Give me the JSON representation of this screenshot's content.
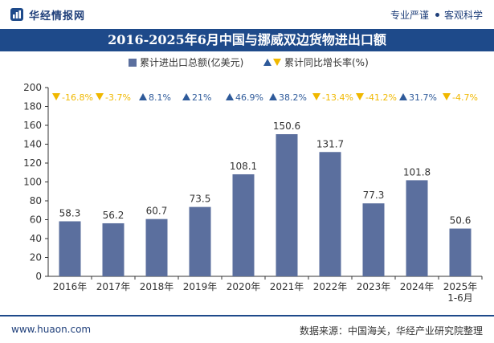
{
  "header": {
    "brand_name": "华经情报网",
    "tagline_left": "专业严谨",
    "tagline_right": "客观科学"
  },
  "chart_title": "2016-2025年6月中国与挪威双边货物进出口额",
  "footer": {
    "website": "www.huaon.com",
    "source": "数据来源：中国海关，华经产业研究院整理"
  },
  "colors": {
    "bar": "#5b6f9e",
    "brand_navy": "#1e4a8a",
    "growth_up": "#2e5a9a",
    "growth_down": "#f0b800"
  },
  "chart_data": {
    "type": "bar",
    "categories": [
      "2016年",
      "2017年",
      "2018年",
      "2019年",
      "2020年",
      "2021年",
      "2022年",
      "2023年",
      "2024年",
      "2025年\n1-6月"
    ],
    "series": [
      {
        "name": "累计进出口总额(亿美元)",
        "values": [
          58.3,
          56.2,
          60.7,
          73.5,
          108.1,
          150.6,
          131.7,
          77.3,
          101.8,
          50.6
        ],
        "value_labels": [
          "58.3",
          "56.2",
          "60.7",
          "73.5",
          "108.1",
          "150.6",
          "131.7",
          "77.3",
          "101.8",
          "50.6"
        ]
      },
      {
        "name": "累计同比增长率(%)",
        "values": [
          -16.8,
          -3.7,
          8.1,
          21,
          46.9,
          38.2,
          -13.4,
          -41.2,
          31.7,
          -4.7
        ],
        "value_labels": [
          "-16.8%",
          "-3.7%",
          "8.1%",
          "21%",
          "46.9%",
          "38.2%",
          "-13.4%",
          "-41.2%",
          "31.7%",
          "-4.7%"
        ]
      }
    ],
    "ylim": [
      0,
      200
    ],
    "yticks": [
      0,
      20,
      40,
      60,
      80,
      100,
      120,
      140,
      160,
      180,
      200
    ],
    "legend_position": "top-center",
    "grid": false
  }
}
